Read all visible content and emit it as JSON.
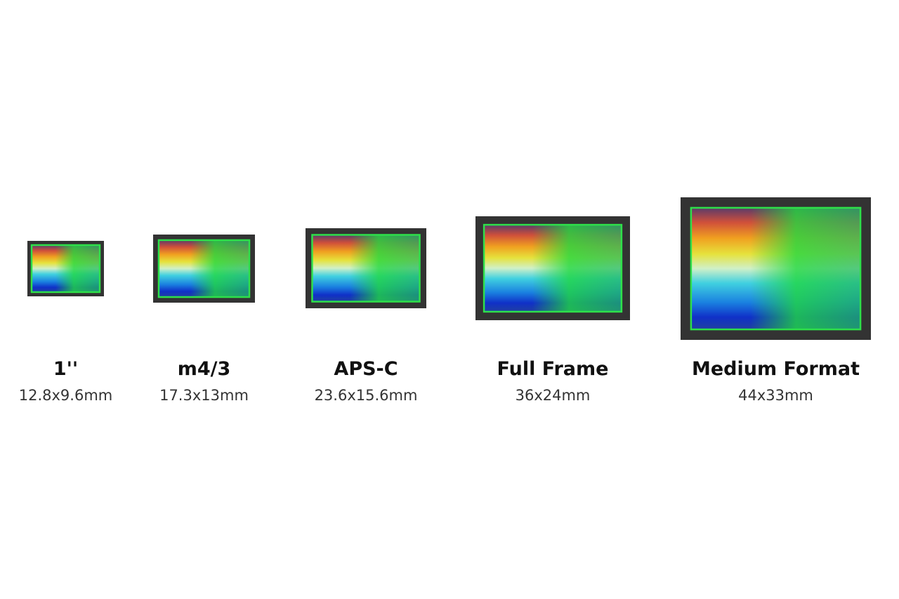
{
  "sensors": [
    {
      "name": "1''",
      "size": "12.8x9.6mm"
    },
    {
      "name": "m4/3",
      "size": "17.3x13mm"
    },
    {
      "name": "APS-C",
      "size": "23.6x15.6mm"
    },
    {
      "name": "Full Frame",
      "size": "36x24mm"
    },
    {
      "name": "Medium Format",
      "size": "44x33mm"
    }
  ]
}
